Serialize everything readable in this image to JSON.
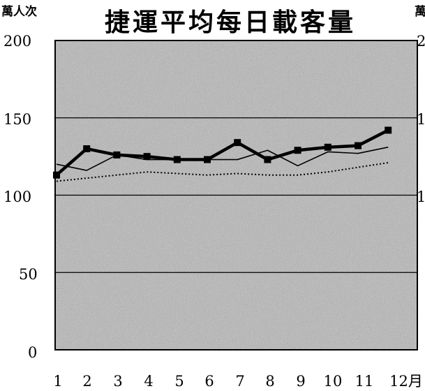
{
  "chart_data": {
    "type": "line",
    "title": "捷運平均每日載客量",
    "ylabel": "萬人次",
    "xlabel": "月",
    "right_axis_fragment": {
      "unit": "萬",
      "ticks": [
        "2",
        "1",
        "1"
      ]
    },
    "x": [
      1,
      2,
      3,
      4,
      5,
      6,
      7,
      8,
      9,
      10,
      11,
      12
    ],
    "x_tick_labels": [
      "1",
      "2",
      "3",
      "4",
      "5",
      "6",
      "7",
      "8",
      "9",
      "10",
      "11",
      "12月"
    ],
    "y_tick_labels": [
      "200",
      "150",
      "100",
      "50",
      "0"
    ],
    "ylim": [
      0,
      200
    ],
    "grid": "horizontal",
    "series": [
      {
        "style": "thick line with square markers",
        "color": "#000000",
        "values": [
          113,
          130,
          126,
          125,
          123,
          123,
          134,
          123,
          129,
          131,
          132,
          142
        ]
      },
      {
        "style": "thin line",
        "color": "#000000",
        "values": [
          120,
          116,
          126,
          123,
          123,
          123,
          123,
          129,
          119,
          128,
          127,
          131
        ]
      },
      {
        "style": "dotted line",
        "color": "#000000",
        "values": [
          109,
          111,
          113,
          115,
          114,
          113,
          114,
          113,
          113,
          115,
          118,
          121
        ]
      }
    ]
  }
}
